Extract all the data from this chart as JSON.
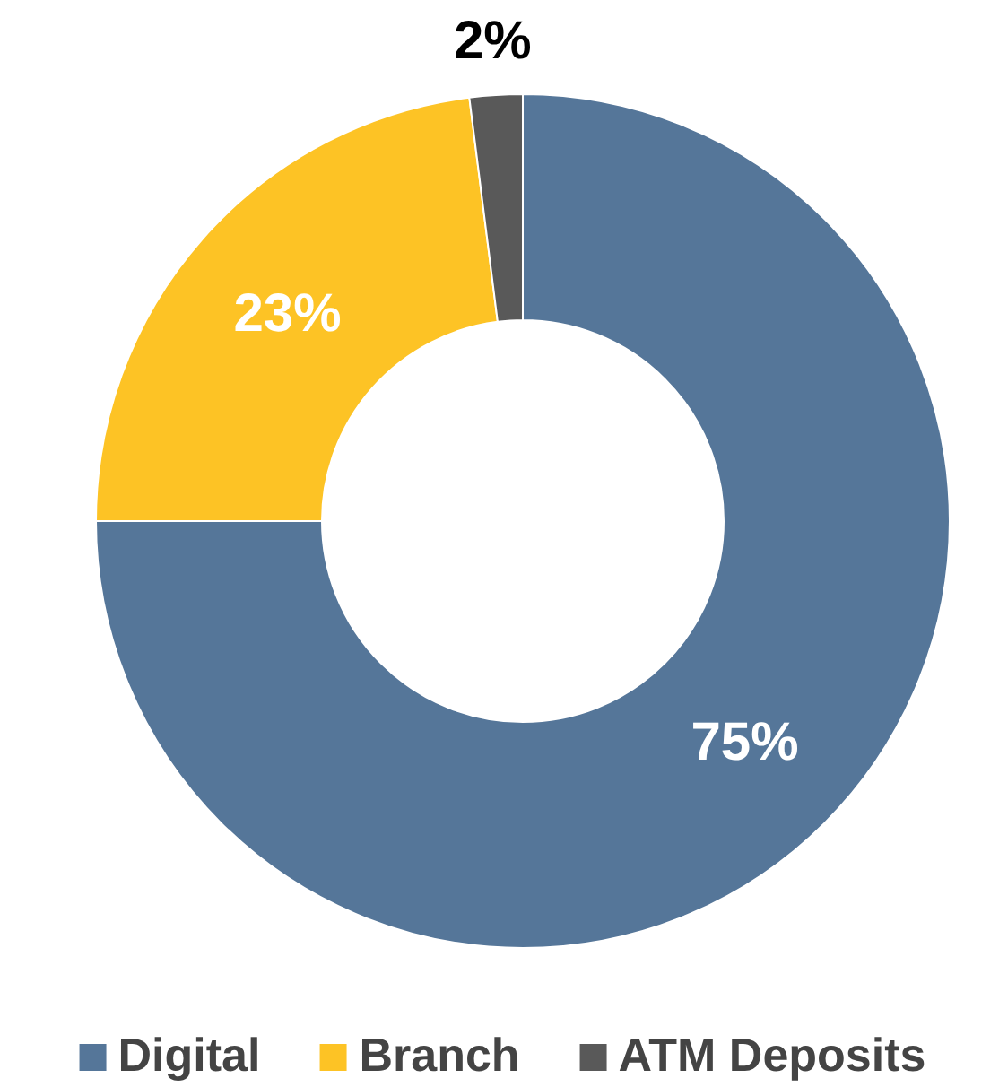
{
  "chart_data": {
    "type": "donut",
    "categories": [
      "Digital",
      "Branch",
      "ATM Deposits"
    ],
    "values": [
      75,
      23,
      2
    ],
    "colors": [
      "#557699",
      "#fdc325",
      "#595959"
    ],
    "value_labels": [
      "75%",
      "23%",
      "2%"
    ],
    "legend": "bottom"
  }
}
